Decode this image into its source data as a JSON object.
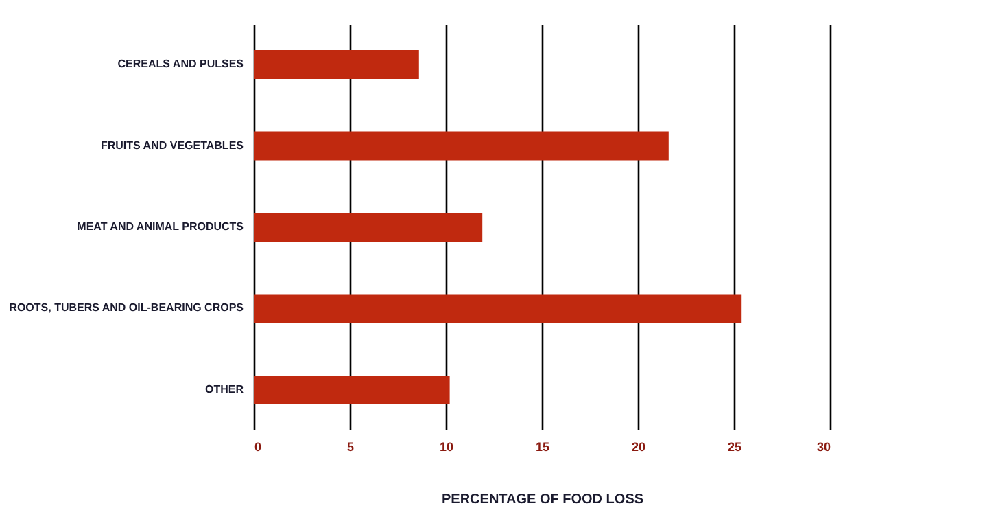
{
  "chart_data": {
    "type": "bar",
    "orientation": "horizontal",
    "categories": [
      "CEREALS AND PULSES",
      "FRUITS AND VEGETABLES",
      "MEAT AND ANIMAL PRODUCTS",
      "ROOTS, TUBERS AND OIL-BEARING CROPS",
      "OTHER"
    ],
    "values": [
      8.6,
      21.6,
      11.9,
      25.4,
      10.2
    ],
    "color": "#c0290f",
    "xlim": [
      0,
      30
    ],
    "xticks": [
      0,
      5,
      10,
      15,
      20,
      25,
      30
    ],
    "xlabel": "PERCENTAGE OF FOOD LOSS",
    "grid": "x"
  }
}
